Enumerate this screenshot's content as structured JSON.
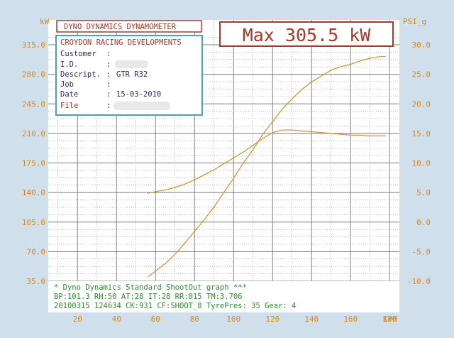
{
  "header": {
    "brand": "DYNO DYNAMICS DYNAMOMETER",
    "max_label": "Max 305.5 kW"
  },
  "info_panel": {
    "company": "CROYDON RACING DEVELOPMENTS",
    "rows": [
      {
        "label": "Customer",
        "sep": ":",
        "value": ""
      },
      {
        "label": "I.D.",
        "sep": ":",
        "value": ""
      },
      {
        "label": "Descript.",
        "sep": ":",
        "value": "GTR R32"
      },
      {
        "label": "Job",
        "sep": ":",
        "value": ""
      },
      {
        "label": "Date",
        "sep": ":",
        "value": "15-03-2010"
      },
      {
        "label": "File",
        "sep": ":",
        "value": ""
      }
    ]
  },
  "footer": {
    "line1": "* Dyno Dynamics Standard ShootOut graph ***",
    "line2": "BP:101.3 RH:50 AT:28 IT:28  RR:015 TM:3.706",
    "line3": "20100315 124634 CK:931 CF:SHOOT_8  TyrePres: 35       Gear: 4"
  },
  "colors": {
    "background": "#cfe0ec",
    "frame": "#ffffff",
    "axis_text": "#d98a1a",
    "grid": "#7a7a7a",
    "curve": "#d0902a",
    "brand_border": "#a83a2a",
    "brand_text": "#a83a2a",
    "panel_border": "#4aa0c0",
    "panel_text": "#2a2a6a",
    "footer_text": "#2f8a2f"
  },
  "chart_data": {
    "type": "line",
    "xlabel": "KPH",
    "ylabel_left": "kW",
    "ylabel_right": "PSI_g",
    "xlim": [
      5,
      185
    ],
    "ylim_left": [
      35,
      325
    ],
    "ylim_right": [
      -10,
      33.3
    ],
    "x_ticks": [
      20,
      40,
      60,
      80,
      100,
      120,
      140,
      160,
      180
    ],
    "y_left_ticks": [
      35.0,
      70.0,
      105.0,
      140.0,
      175.0,
      210.0,
      245.0,
      280.0,
      315.0
    ],
    "y_left_tick_labels": [
      "35.0",
      "70.0",
      "105.0",
      "140.0",
      "175.0",
      "210.0",
      "245.0",
      "280.0",
      "315.0"
    ],
    "y_right_ticks": [
      -10,
      -5,
      0,
      5,
      10,
      15,
      20,
      25,
      30
    ],
    "y_right_tick_labels": [
      "-10.0",
      "-5.0",
      "0.0",
      "5.0",
      "10.0",
      "15.0",
      "20.0",
      "25.0",
      "30.0"
    ],
    "grid": true,
    "series": [
      {
        "x": [
          56,
          60,
          65,
          70,
          75,
          80,
          85,
          90,
          95,
          100,
          105,
          110,
          115,
          120,
          125,
          130,
          135,
          140,
          145,
          150,
          155,
          160,
          165,
          170,
          175,
          178
        ],
        "y": [
          139,
          141,
          143,
          146,
          150,
          155,
          161,
          167,
          174,
          181,
          188,
          196,
          204,
          211,
          214,
          214,
          213,
          212,
          211,
          210,
          209,
          208,
          208,
          207,
          207,
          207
        ]
      },
      {
        "x": [
          56,
          60,
          65,
          70,
          75,
          80,
          85,
          90,
          95,
          100,
          105,
          110,
          115,
          120,
          125,
          130,
          135,
          140,
          145,
          150,
          155,
          160,
          165,
          170,
          175,
          178
        ],
        "y": [
          40,
          47,
          56,
          67,
          80,
          94,
          108,
          123,
          140,
          157,
          175,
          191,
          209,
          224,
          239,
          251,
          262,
          271,
          278,
          285,
          289,
          292,
          296,
          299,
          301,
          301
        ]
      }
    ]
  }
}
